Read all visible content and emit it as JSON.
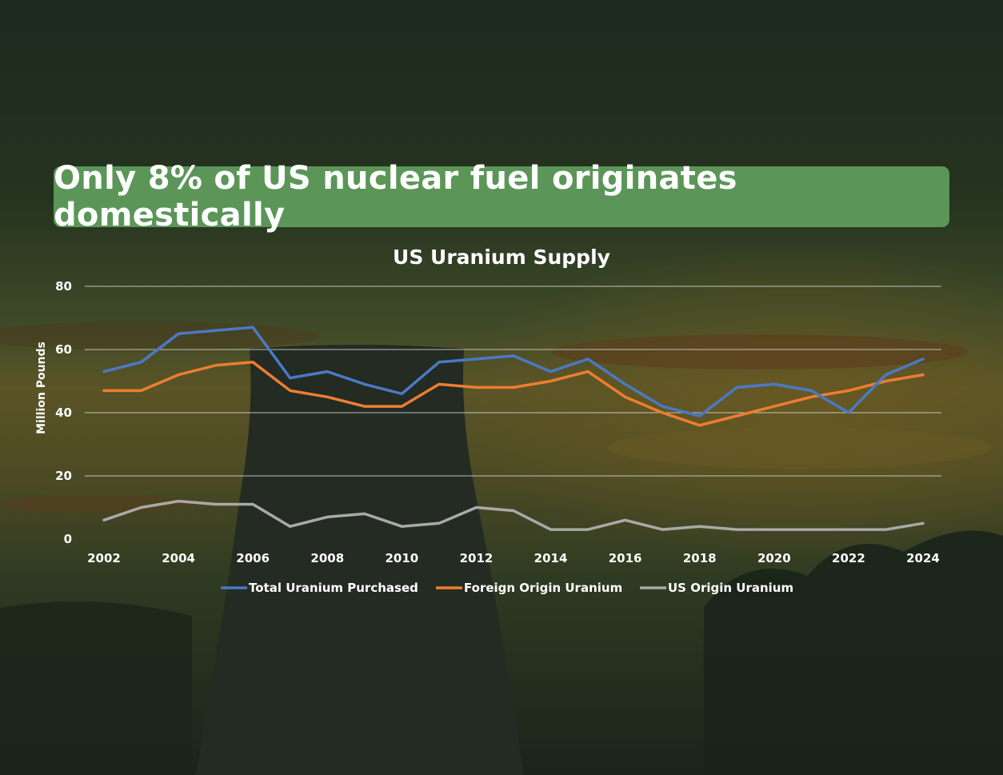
{
  "banner": {
    "text": "Only 8% of US nuclear fuel originates domestically"
  },
  "colors": {
    "banner": "#5b9658",
    "total": "#4a79c5",
    "foreign": "#ed7d31",
    "us": "#a9a9a9"
  },
  "chart_data": {
    "type": "line",
    "title": "US Uranium Supply",
    "xlabel": "",
    "ylabel": "Million Pounds",
    "ylim": [
      0,
      80
    ],
    "yticks": [
      0,
      20,
      40,
      60,
      80
    ],
    "xticks": [
      2002,
      2004,
      2006,
      2008,
      2010,
      2012,
      2014,
      2016,
      2018,
      2020,
      2022,
      2024
    ],
    "x": [
      2002,
      2003,
      2004,
      2005,
      2006,
      2007,
      2008,
      2009,
      2010,
      2011,
      2012,
      2013,
      2014,
      2015,
      2016,
      2017,
      2018,
      2019,
      2020,
      2021,
      2022,
      2023,
      2024
    ],
    "series": [
      {
        "key": "total",
        "name": "Total Uranium Purchased",
        "color": "#4a79c5",
        "values": [
          53,
          56,
          65,
          66,
          67,
          51,
          53,
          49,
          46,
          56,
          57,
          58,
          53,
          57,
          49,
          42,
          39,
          48,
          49,
          47,
          40,
          52,
          57
        ]
      },
      {
        "key": "foreign",
        "name": "Foreign Origin Uranium",
        "color": "#ed7d31",
        "values": [
          47,
          47,
          52,
          55,
          56,
          47,
          45,
          42,
          42,
          49,
          48,
          48,
          50,
          53,
          45,
          40,
          36,
          39,
          42,
          45,
          47,
          50,
          52
        ]
      },
      {
        "key": "us",
        "name": "US Origin Uranium",
        "color": "#a9a9a9",
        "values": [
          6,
          10,
          12,
          11,
          11,
          4,
          7,
          8,
          4,
          5,
          10,
          9,
          3,
          3,
          6,
          3,
          4,
          3,
          3,
          3,
          3,
          3,
          5
        ]
      }
    ],
    "legend": "bottom"
  }
}
